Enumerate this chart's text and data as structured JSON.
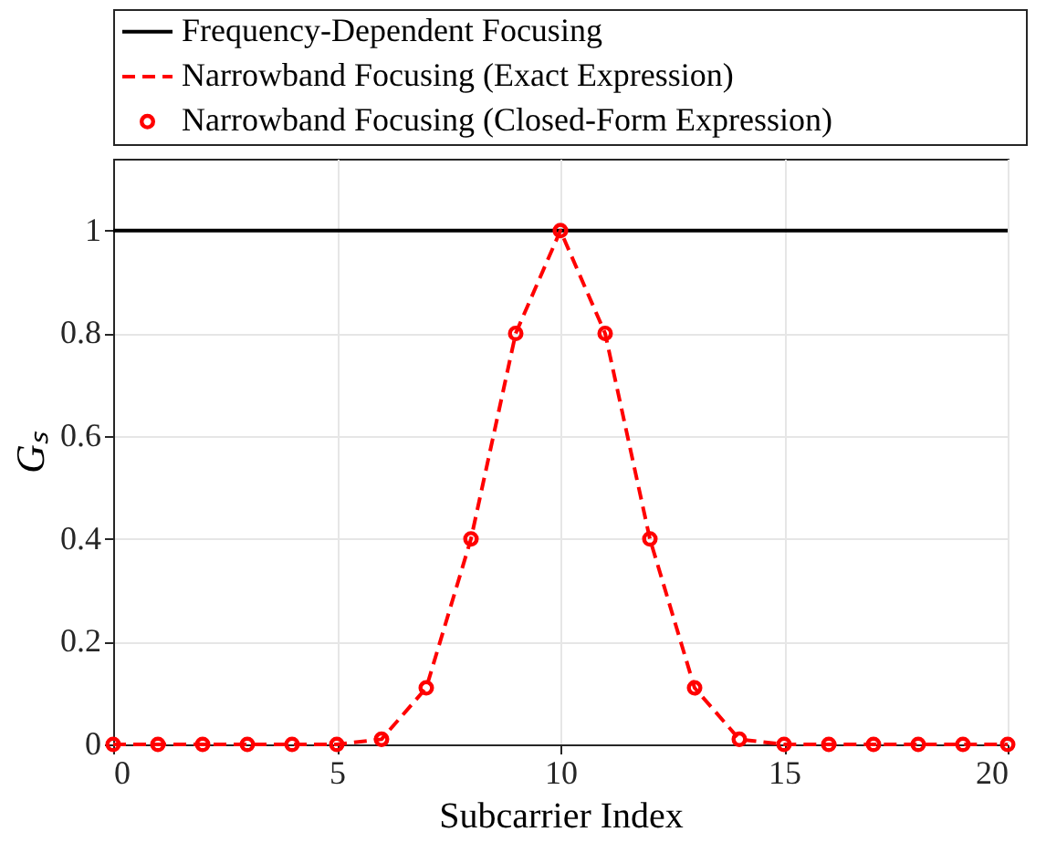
{
  "chart_data": {
    "type": "line",
    "xlabel": "Subcarrier Index",
    "ylabel": "Gₛ",
    "xlim": [
      0,
      20
    ],
    "xticks": [
      0,
      5,
      10,
      15,
      20
    ],
    "ylim": [
      0,
      1.14
    ],
    "yticks": [
      0,
      0.2,
      0.4,
      0.6,
      0.8,
      1
    ],
    "grid": true,
    "legend": "top",
    "series": [
      {
        "name": "Frequency-Dependent Focusing",
        "color": "#000000",
        "line_style": "solid",
        "marker": "none",
        "x": [
          0,
          20
        ],
        "values": [
          1,
          1
        ]
      },
      {
        "name": "Narrowband Focusing (Exact Expression)",
        "color": "#ff0000",
        "line_style": "dashed",
        "marker": "none",
        "x": [
          0,
          1,
          2,
          3,
          4,
          5,
          6,
          7,
          8,
          9,
          10,
          11,
          12,
          13,
          14,
          15,
          16,
          17,
          18,
          19,
          20
        ],
        "values": [
          0,
          0,
          0,
          0,
          0,
          0,
          0.01,
          0.11,
          0.4,
          0.8,
          1,
          0.8,
          0.4,
          0.11,
          0.01,
          0,
          0,
          0,
          0,
          0,
          0
        ]
      },
      {
        "name": "Narrowband Focusing (Closed-Form Expression)",
        "type": "scatter",
        "color": "#ff0000",
        "marker": "circle",
        "x": [
          0,
          1,
          2,
          3,
          4,
          5,
          6,
          7,
          8,
          9,
          10,
          11,
          12,
          13,
          14,
          15,
          16,
          17,
          18,
          19,
          20
        ],
        "values": [
          0,
          0,
          0,
          0,
          0,
          0,
          0.01,
          0.11,
          0.4,
          0.8,
          1,
          0.8,
          0.4,
          0.11,
          0.01,
          0,
          0,
          0,
          0,
          0,
          0
        ]
      }
    ]
  }
}
